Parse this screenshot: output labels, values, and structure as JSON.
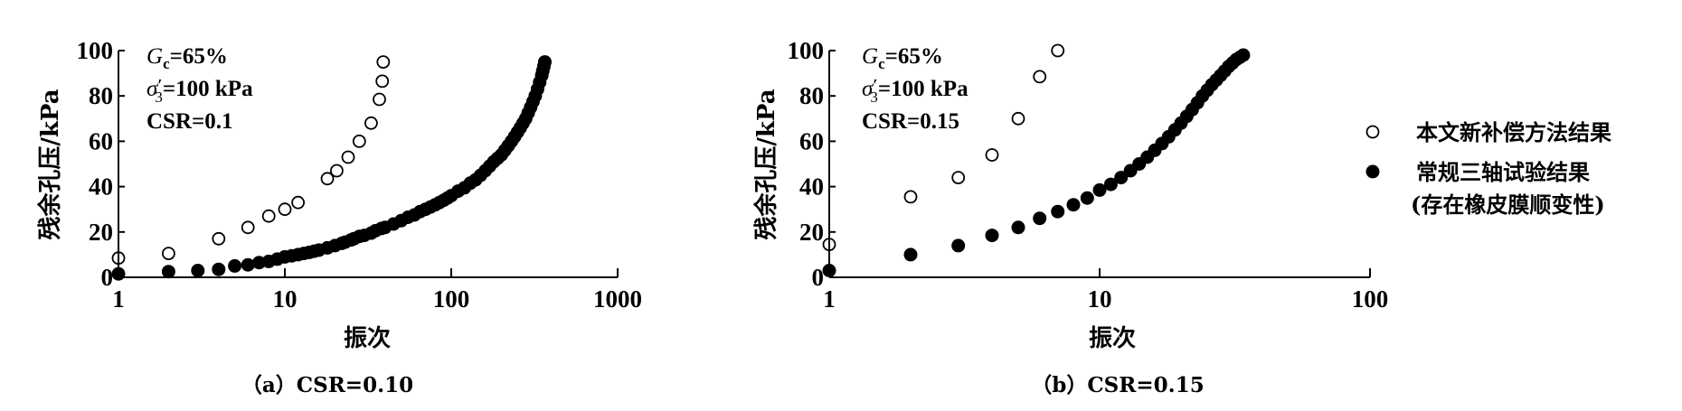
{
  "chart_data": [
    {
      "type": "scatter",
      "title": "",
      "caption": "（a）CSR=0.10",
      "xlabel": "振次",
      "ylabel": "残余孔压/kPa",
      "xscale": "log",
      "xlim": [
        1,
        1000
      ],
      "ylim": [
        0,
        100
      ],
      "xticks": [
        "1",
        "10",
        "100",
        "1000"
      ],
      "xtick_values": [
        1,
        10,
        100,
        1000
      ],
      "yticks": [
        "0",
        "20",
        "40",
        "60",
        "80",
        "100"
      ],
      "ytick_values": [
        0,
        20,
        40,
        60,
        80,
        100
      ],
      "annotations": {
        "gc_var": "G",
        "gc_sub": "c",
        "gc_rest": "=65%",
        "sig_var": "σ",
        "sig_prime": "′",
        "sig_sub": "3",
        "sig_rest": "=100 kPa",
        "csr": "CSR=0.1"
      },
      "series": [
        {
          "name": "本文新补偿方法结果",
          "marker": "open",
          "x": [
            1,
            2,
            4,
            6,
            8,
            10,
            12,
            18,
            20.5,
            24,
            28,
            33,
            37,
            38.5,
            39
          ],
          "y": [
            8.5,
            10.5,
            17,
            22,
            27,
            30,
            33,
            43.5,
            47,
            53,
            60,
            68,
            78.5,
            86.5,
            95
          ]
        },
        {
          "name": "常规三轴试验结果(存在橡皮膜顺变性)",
          "marker": "filled",
          "x": [
            1,
            2,
            3,
            4,
            5,
            6,
            7,
            8,
            9,
            10,
            11,
            12,
            13,
            14,
            15,
            16,
            18,
            20,
            22,
            23,
            25,
            26,
            28,
            30,
            33,
            35,
            38,
            40,
            45,
            50,
            55,
            60,
            65,
            70,
            75,
            80,
            85,
            90,
            95,
            100,
            110,
            120,
            130,
            140,
            150,
            160,
            170,
            180,
            190,
            200,
            210,
            220,
            230,
            240,
            250,
            260,
            270,
            280,
            290,
            300,
            310,
            320,
            330,
            340,
            350,
            355,
            360,
            365
          ],
          "y": [
            1.5,
            2.5,
            3,
            3.5,
            5,
            5.5,
            6.5,
            7,
            8,
            9,
            9.5,
            10,
            10.5,
            11,
            11.5,
            12,
            13,
            14,
            15,
            15.5,
            16.5,
            17,
            18,
            18.5,
            19.5,
            20.5,
            21.5,
            22,
            23.5,
            25,
            26.5,
            27.5,
            29,
            30,
            31,
            32,
            33,
            34,
            35,
            36,
            38,
            39.5,
            41.5,
            43,
            45,
            47,
            49,
            51,
            52.5,
            54,
            56,
            58,
            60,
            62,
            64,
            66,
            68,
            70,
            72.5,
            75,
            77.5,
            80,
            83,
            86,
            89,
            91,
            93,
            95
          ]
        }
      ]
    },
    {
      "type": "scatter",
      "title": "",
      "caption": "（b）CSR=0.15",
      "xlabel": "振次",
      "ylabel": "残余孔压/kPa",
      "xscale": "log",
      "xlim": [
        1,
        100
      ],
      "ylim": [
        0,
        100
      ],
      "xticks": [
        "1",
        "10",
        "100"
      ],
      "xtick_values": [
        1,
        10,
        100
      ],
      "yticks": [
        "0",
        "20",
        "40",
        "60",
        "80",
        "100"
      ],
      "ytick_values": [
        0,
        20,
        40,
        60,
        80,
        100
      ],
      "annotations": {
        "gc_var": "G",
        "gc_sub": "c",
        "gc_rest": "=65%",
        "sig_var": "σ",
        "sig_prime": "′",
        "sig_sub": "3",
        "sig_rest": "=100 kPa",
        "csr": "CSR=0.15"
      },
      "series": [
        {
          "name": "本文新补偿方法结果",
          "marker": "open",
          "x": [
            1,
            2,
            3,
            4,
            5,
            6,
            7
          ],
          "y": [
            14.5,
            35.5,
            44,
            54,
            70,
            88.5,
            100
          ]
        },
        {
          "name": "常规三轴试验结果(存在橡皮膜顺变性)",
          "marker": "filled",
          "x": [
            1,
            2,
            3,
            4,
            5,
            6,
            7,
            8,
            9,
            10,
            11,
            12,
            13,
            14,
            15,
            16,
            17,
            18,
            19,
            20,
            21,
            22,
            23,
            24,
            25,
            26,
            27,
            28,
            29,
            30,
            31,
            32,
            33,
            34
          ],
          "y": [
            3,
            10,
            14,
            18.5,
            22,
            26,
            29,
            32,
            35,
            38.5,
            41,
            44,
            47,
            50,
            53,
            56,
            59,
            62,
            65,
            68,
            71,
            74,
            77,
            80,
            82.5,
            85,
            87,
            89,
            91,
            93,
            94.5,
            96,
            97,
            98
          ]
        }
      ]
    }
  ],
  "legend": {
    "placement": "right",
    "items": [
      {
        "marker": "open",
        "label": "本文新补偿方法结果"
      },
      {
        "marker": "filled",
        "label_line1": "常规三轴试验结果",
        "label_line2": "(存在橡皮膜顺变性)"
      }
    ]
  }
}
